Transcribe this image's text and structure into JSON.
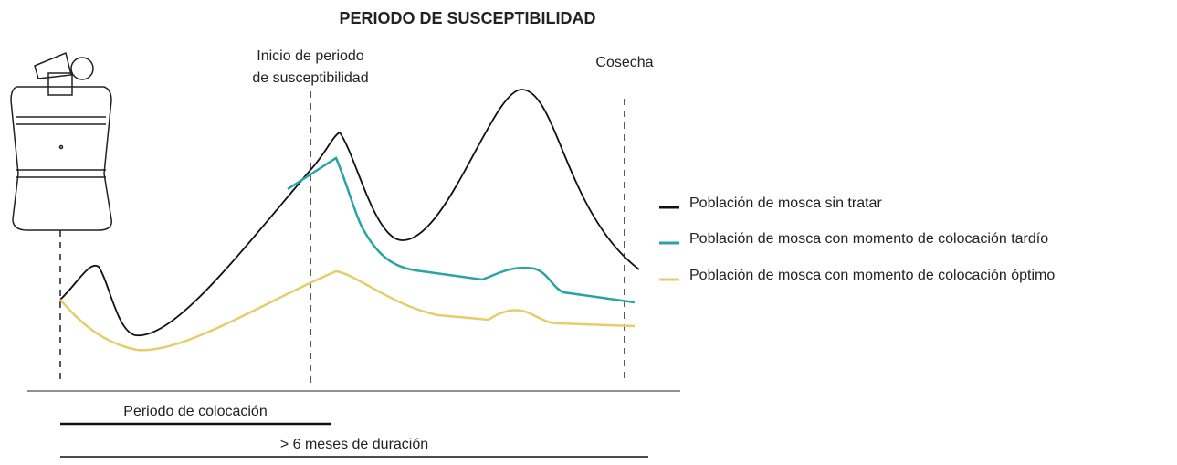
{
  "title": "PERIODO DE SUSCEPTIBILIDAD",
  "markers": {
    "start": [
      "Inicio de periodo",
      "de susceptibilidad"
    ],
    "harvest": "Cosecha"
  },
  "legend": [
    "Población de mosca sin tratar",
    "Población de mosca con momento de colocación tardío",
    "Población de mosca con momento de colocación óptimo"
  ],
  "footer": {
    "placement": "Periodo de colocación",
    "duration": "> 6 meses de duración"
  }
}
